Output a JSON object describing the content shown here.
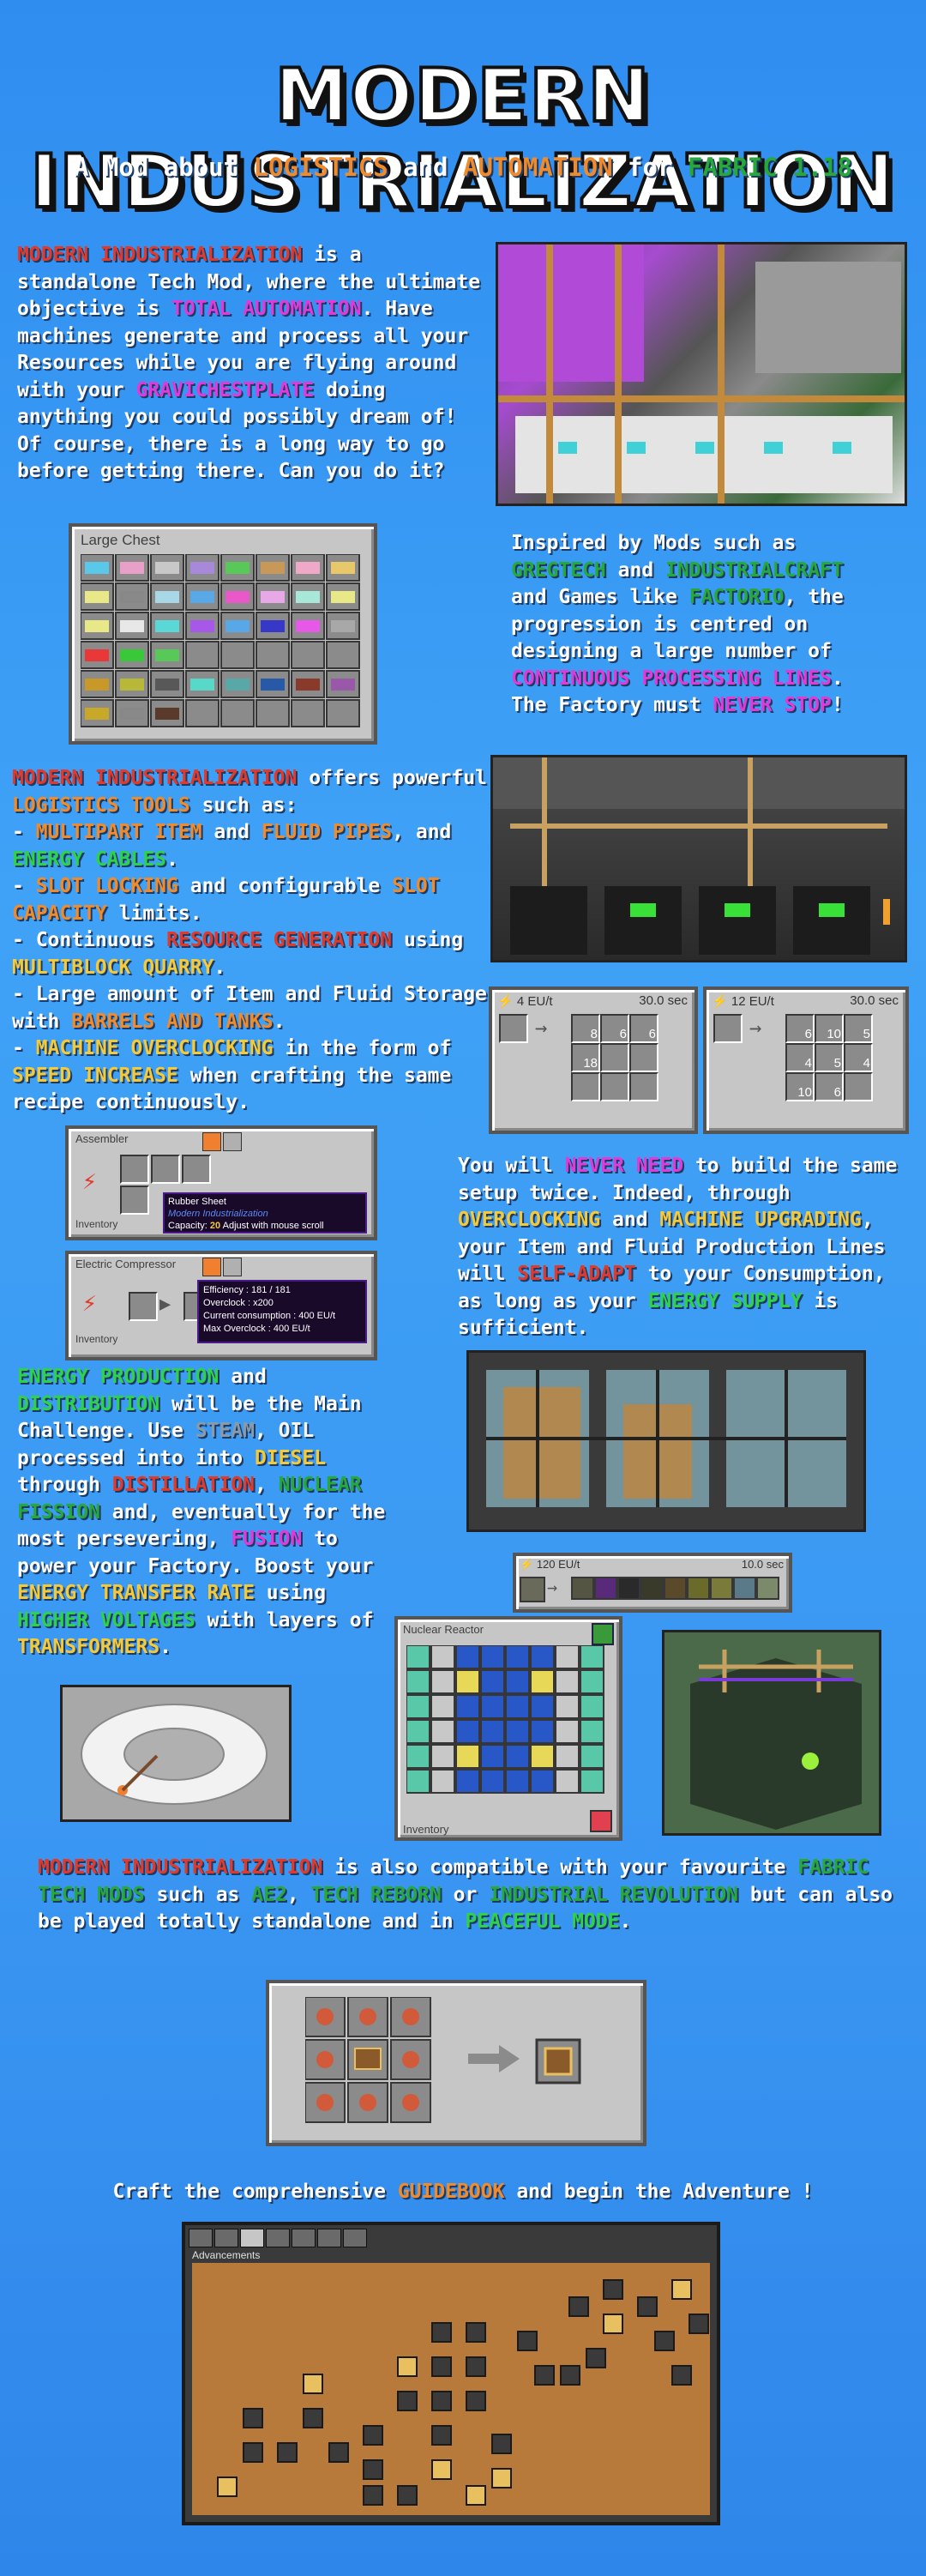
{
  "header": {
    "title": "MODERN INDUSTRIALIZATION",
    "subtitle_a": "A Mod about ",
    "subtitle_b": "LOGISTICS",
    "subtitle_c": " and ",
    "subtitle_d": "AUTOMATION",
    "subtitle_e": " for ",
    "subtitle_f": "FABRIC 1.18"
  },
  "intro": {
    "p1": "MODERN INDUSTRIALIZATION",
    "p2": " is a standalone Tech Mod, where the ultimate objective is ",
    "p3": "TOTAL AUTOMATION",
    "p4": ". Have machines generate and process all your Resources while you are flying around with your ",
    "p5": "GRAVICHESTPLATE",
    "p6": " doing anything you could possibly dream of! Of course, there is a long way to go before getting there. Can you do it?"
  },
  "chest": {
    "title": "Large Chest"
  },
  "inspired": {
    "a": "Inspired by Mods such as ",
    "b": "GREGTECH",
    "c": " and ",
    "d": "INDUSTRIALCRAFT",
    "e": " and Games like ",
    "f": "FACTORIO",
    "g": ", the progression is centred on designing a large number of ",
    "h": "CONTINUOUS PROCESSING LINES",
    "i": ". The Factory must ",
    "j": "NEVER STOP",
    "k": "!"
  },
  "logistics": {
    "a": "MODERN INDUSTRIALIZATION",
    "b": "  offers powerful ",
    "c": "LOGISTICS TOOLS",
    "d": " such as:",
    "e": "- ",
    "f": "MULTIPART ITEM",
    "g": " and ",
    "h": "FLUID PIPES",
    "i": ", and ",
    "j": "ENERGY CABLES",
    "k": ".",
    "l": "- ",
    "m": "SLOT LOCKING",
    "n": " and configurable ",
    "o": "SLOT CAPACITY",
    "p": " limits.",
    "q": "- Continuous ",
    "r": "RESOURCE GENERATION",
    "s": " using ",
    "t": "MULTIBLOCK QUARRY",
    "u": ".",
    "v": "- Large amount of Item and Fluid Storage with ",
    "w": "BARRELS AND TANKS",
    "x": ".",
    "y": "- ",
    "z": "MACHINE OVERCLOCKING",
    "aa": " in the form of ",
    "ab": "SPEED INCREASE",
    "ac": " when crafting the same recipe continuously."
  },
  "recipes": [
    {
      "eu": "4 EU/t",
      "time": "30.0 sec",
      "n1": "8",
      "n2": "6",
      "n3": "6",
      "n4": "18"
    },
    {
      "eu": "12 EU/t",
      "time": "30.0 sec",
      "n1": "6",
      "n2": "10",
      "n3": "5",
      "n4": "4",
      "n5": "5",
      "n6": "4",
      "n7": "10",
      "n8": "6"
    }
  ],
  "assembler": {
    "title": "Assembler",
    "inventory": "Inventory",
    "tip_1": "Rubber Sheet",
    "tip_2": "Modern Industrialization",
    "tip_3a": "Capacity: ",
    "tip_3b": "20",
    "tip_3c": " Adjust with mouse scroll"
  },
  "compressor": {
    "title": "Electric Compressor",
    "inventory": "Inventory",
    "tip_1": "Efficiency : 181 / 181",
    "tip_2": "Overclock : x200",
    "tip_3": "Current consumption : 400 EU/t",
    "tip_4": "Max Overclock : 400 EU/t"
  },
  "never_need": {
    "a": "You will ",
    "b": "NEVER NEED",
    "c": " to build the same setup twice. Indeed, through ",
    "d": "OVERCLOCKING",
    "e": " and ",
    "f": "MACHINE UPGRADING",
    "g": ", your Item and Fluid Production Lines will ",
    "h": "SELF-ADAPT",
    "i": " to your Consumption, as long as your ",
    "j": "ENERGY SUPPLY",
    "k": " is sufficient."
  },
  "energy": {
    "a": "ENERGY PRODUCTION",
    "b": " and ",
    "c": "DISTRIBUTION",
    "d": " will be the Main Challenge. Use ",
    "e": "STEAM",
    "f": ", ",
    "g": "OIL",
    "h": " processed into into ",
    "i": "DIESEL",
    "j": " through ",
    "k": "DISTILLATION",
    "l": ", ",
    "m": "NUCLEAR FISSION",
    "n": " and, eventually for the most persevering, ",
    "o": "FUSION",
    "p": " to power your Factory. Boost your ",
    "q": "ENERGY TRANSFER RATE",
    "r": " using ",
    "s": "HIGHER VOLTAGES",
    "t": " with layers of ",
    "u": "TRANSFORMERS",
    "v": "."
  },
  "distill_bar": {
    "eu": "120 EU/t",
    "time": "10.0 sec"
  },
  "reactor": {
    "title": "Nuclear Reactor",
    "inventory": "Inventory"
  },
  "compat": {
    "a": "MODERN INDUSTRIALIZATION",
    "b": " is also compatible with your favourite ",
    "c": "FABRIC TECH MODS",
    "d": " such as ",
    "e": "AE2",
    "f": ", ",
    "g": "TECH REBORN",
    "h": " or ",
    "i": "INDUSTRIAL REVOLUTION",
    "j": " but can also be played totally standalone and in ",
    "k": "PEACEFUL MODE",
    "l": "."
  },
  "craft": {
    "a": "Craft the comprehensive ",
    "b": "GUIDEBOOK",
    "c": " and begin the Adventure !"
  },
  "advancements": {
    "title": "Advancements"
  },
  "colors": {
    "background": "#3a97f2",
    "red": "#e23a2a",
    "orange": "#f08a2a",
    "green": "#2fd04a",
    "magenta": "#e23ad8",
    "yellow": "#f4c93a"
  }
}
